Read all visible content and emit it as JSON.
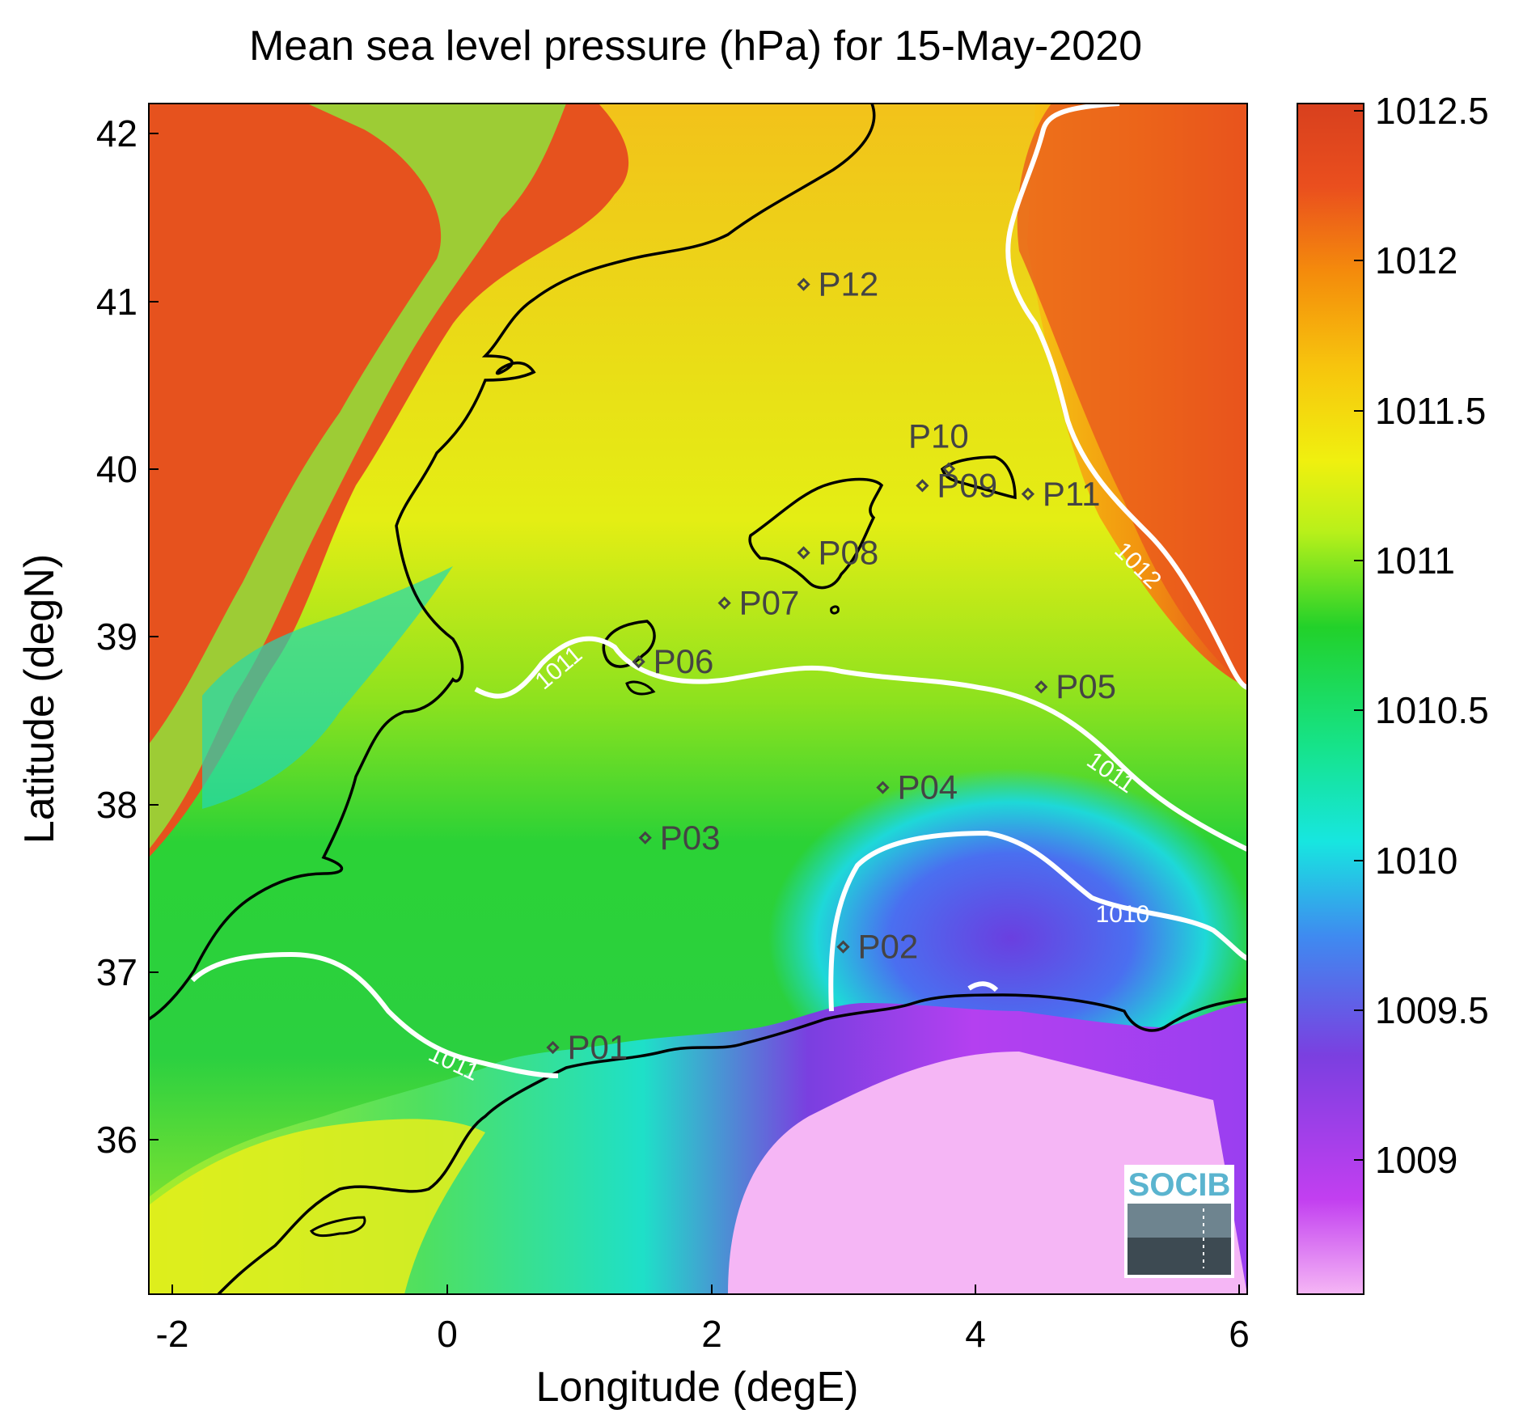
{
  "title": "Mean sea level pressure (hPa) for 15-May-2020",
  "xlabel": "Longitude (degE)",
  "ylabel": "Latitude (degN)",
  "x_ticks": [
    "-2",
    "0",
    "2",
    "4",
    "6"
  ],
  "y_ticks": [
    "42",
    "41",
    "40",
    "39",
    "38",
    "37",
    "36"
  ],
  "colorbar": {
    "ticks": [
      "1012.5",
      "1012",
      "1011.5",
      "1011",
      "1010.5",
      "1010",
      "1009.5",
      "1009"
    ],
    "colors": [
      "#f5b6f5",
      "#c23ff0",
      "#7b3fe0",
      "#3f8af0",
      "#17e6e0",
      "#16e38a",
      "#22d12a",
      "#b8f01a",
      "#f0f00f",
      "#f7c40d",
      "#f48a0c",
      "#ea4f1e",
      "#d8401e"
    ]
  },
  "contour_labels": [
    "1011",
    "1011",
    "1012",
    "1010",
    "1011"
  ],
  "logo": "SOCIB",
  "chart_data": {
    "type": "heatmap",
    "title": "Mean sea level pressure (hPa) for 15-May-2020",
    "xlabel": "Longitude (degE)",
    "ylabel": "Latitude (degN)",
    "xlim": [
      -2.2,
      6.1
    ],
    "ylim": [
      35.2,
      42.2
    ],
    "clim": [
      1008.6,
      1012.55
    ],
    "colorbar_ticks": [
      1009,
      1009.5,
      1010,
      1010.5,
      1011,
      1011.5,
      1012,
      1012.5
    ],
    "contour_levels": [
      1010,
      1011,
      1012
    ],
    "stations": [
      {
        "name": "P01",
        "lon": 0.8,
        "lat": 36.55
      },
      {
        "name": "P02",
        "lon": 3.0,
        "lat": 37.15
      },
      {
        "name": "P03",
        "lon": 1.5,
        "lat": 37.8
      },
      {
        "name": "P04",
        "lon": 3.3,
        "lat": 38.1
      },
      {
        "name": "P05",
        "lon": 4.5,
        "lat": 38.7
      },
      {
        "name": "P06",
        "lon": 1.45,
        "lat": 38.85
      },
      {
        "name": "P07",
        "lon": 2.1,
        "lat": 39.2
      },
      {
        "name": "P08",
        "lon": 2.7,
        "lat": 39.5
      },
      {
        "name": "P09",
        "lon": 3.6,
        "lat": 39.9
      },
      {
        "name": "P10",
        "lon": 3.8,
        "lat": 40.0
      },
      {
        "name": "P11",
        "lon": 4.4,
        "lat": 39.85
      },
      {
        "name": "P12",
        "lon": 2.7,
        "lat": 41.1
      }
    ]
  }
}
